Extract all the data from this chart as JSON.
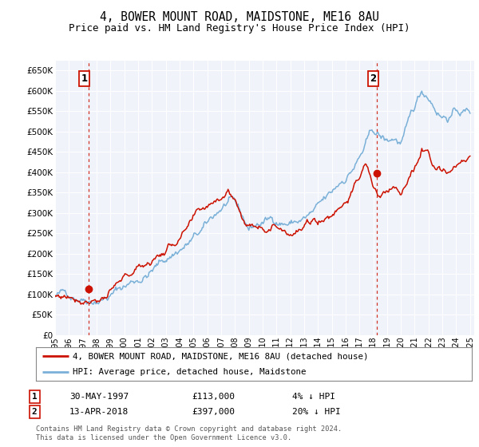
{
  "title": "4, BOWER MOUNT ROAD, MAIDSTONE, ME16 8AU",
  "subtitle": "Price paid vs. HM Land Registry's House Price Index (HPI)",
  "title_fontsize": 10.5,
  "subtitle_fontsize": 9,
  "plot_bg_color": "#f0f4fa",
  "hpi_color": "#7ab0d8",
  "price_color": "#cc1100",
  "dashed_line_color": "#cc1100",
  "ylim": [
    0,
    680000
  ],
  "sale1_price": 113000,
  "sale1_year": 1997.42,
  "sale1_date_label": "30-MAY-1997",
  "sale1_note": "4% ↓ HPI",
  "sale2_price": 397000,
  "sale2_year": 2018.28,
  "sale2_date_label": "13-APR-2018",
  "sale2_note": "20% ↓ HPI",
  "legend_label1": "4, BOWER MOUNT ROAD, MAIDSTONE, ME16 8AU (detached house)",
  "legend_label2": "HPI: Average price, detached house, Maidstone",
  "footer": "Contains HM Land Registry data © Crown copyright and database right 2024.\nThis data is licensed under the Open Government Licence v3.0.",
  "annotation1_label": "1",
  "annotation2_label": "2",
  "hpi_anchors_x": [
    1995,
    1996,
    1997,
    1998,
    1999,
    2000,
    2001,
    2002,
    2003,
    2004,
    2005,
    2006,
    2007,
    2007.5,
    2008,
    2008.5,
    2009,
    2009.5,
    2010,
    2011,
    2012,
    2013,
    2014,
    2015,
    2016,
    2017,
    2017.5,
    2018,
    2018.5,
    2019,
    2019.5,
    2020,
    2020.5,
    2021,
    2021.5,
    2022,
    2022.5,
    2023,
    2023.5,
    2024,
    2025
  ],
  "hpi_anchors_y": [
    97000,
    100000,
    107000,
    120000,
    135000,
    155000,
    175000,
    200000,
    225000,
    255000,
    278000,
    300000,
    340000,
    355000,
    335000,
    300000,
    270000,
    280000,
    287000,
    295000,
    295000,
    305000,
    320000,
    340000,
    385000,
    435000,
    465000,
    490000,
    475000,
    460000,
    470000,
    460000,
    490000,
    530000,
    570000,
    565000,
    545000,
    530000,
    535000,
    545000,
    545000
  ],
  "price_anchors_x": [
    1995,
    1996,
    1997,
    1998,
    1999,
    2000,
    2001,
    2002,
    2003,
    2004,
    2005,
    2006,
    2007,
    2007.5,
    2008,
    2008.5,
    2009,
    2009.5,
    2010,
    2011,
    2012,
    2013,
    2014,
    2015,
    2016,
    2017,
    2017.5,
    2018,
    2018.5,
    2019,
    2019.5,
    2020,
    2020.5,
    2021,
    2021.5,
    2022,
    2022.5,
    2023,
    2023.5,
    2024,
    2025
  ],
  "price_anchors_y": [
    95000,
    98000,
    104000,
    118000,
    130000,
    148000,
    168000,
    192000,
    218000,
    248000,
    272000,
    292000,
    330000,
    348000,
    328000,
    292000,
    262000,
    273000,
    280000,
    288000,
    288000,
    298000,
    312000,
    330000,
    376000,
    425000,
    455000,
    397000,
    365000,
    375000,
    385000,
    378000,
    400000,
    420000,
    460000,
    455000,
    435000,
    420000,
    425000,
    435000,
    440000
  ]
}
